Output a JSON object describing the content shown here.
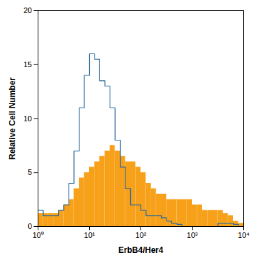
{
  "chart_data": {
    "type": "histogram",
    "x_label": "ErbB4/Her4",
    "y_label": "Relative Cell Number",
    "log": "x",
    "grid": false,
    "xlim": [
      1,
      10000
    ],
    "xticks": [
      {
        "value": 1,
        "label": "10⁰"
      },
      {
        "value": 10,
        "label": "10¹"
      },
      {
        "value": 100,
        "label": "10²"
      },
      {
        "value": 1000,
        "label": "10³"
      },
      {
        "value": 10000,
        "label": "10⁴"
      }
    ],
    "ylim": [
      0,
      20
    ],
    "yticks": [
      0,
      5,
      10,
      15,
      20
    ],
    "bins": [
      1,
      1.26,
      1.58,
      2,
      2.51,
      3.16,
      3.98,
      5.01,
      6.31,
      7.94,
      10,
      12.6,
      15.8,
      20,
      25.1,
      31.6,
      39.8,
      50.1,
      63.1,
      79.4,
      100,
      126,
      158,
      200,
      251,
      316,
      398,
      501,
      631,
      794,
      1000,
      1260,
      1580,
      2000,
      2510,
      3160,
      3980,
      5010,
      6310,
      7940,
      10000
    ],
    "series": [
      {
        "type": "bar",
        "color": "#f7a11a",
        "values": [
          1.2,
          1.2,
          1.2,
          1.2,
          1.5,
          2,
          2.5,
          3.5,
          4.5,
          5,
          5.5,
          6,
          6.5,
          7,
          7.5,
          7,
          6.5,
          6,
          6,
          5.5,
          5,
          4,
          3.5,
          3,
          3,
          2.5,
          2.5,
          2.5,
          2.5,
          2.5,
          2,
          2,
          1.5,
          1.5,
          1.5,
          1.5,
          1.2,
          1,
          0.5,
          0.3
        ]
      },
      {
        "type": "line",
        "color": "#2a6b9b",
        "values": [
          1.5,
          1,
          1,
          1,
          1.5,
          2,
          4,
          7,
          11,
          14,
          16,
          15.5,
          13.5,
          13,
          11,
          8,
          5.5,
          3.5,
          2,
          2,
          1.5,
          1,
          1,
          1,
          0.8,
          0.5,
          0.3,
          0.2,
          0,
          0,
          0,
          0,
          0,
          0,
          0,
          0.3,
          0.3,
          0.3,
          0.2,
          0
        ]
      }
    ]
  }
}
